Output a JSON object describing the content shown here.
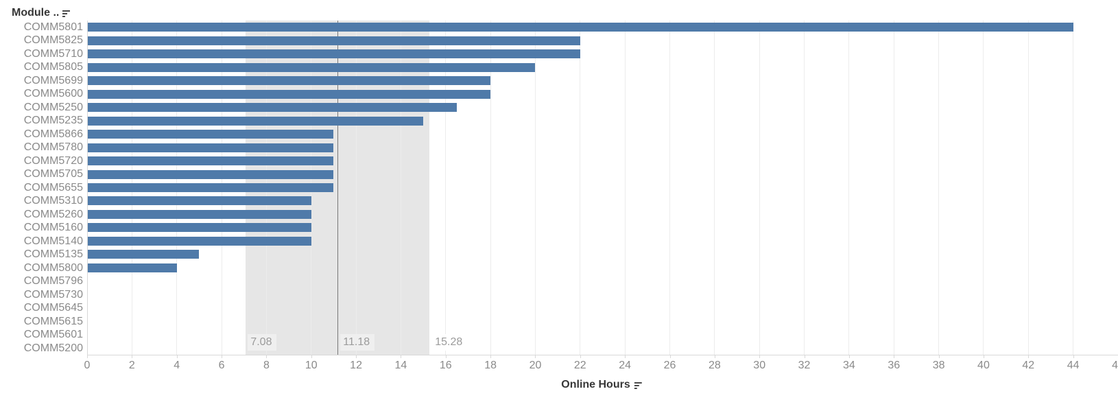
{
  "header": {
    "label": "Module .."
  },
  "axis": {
    "title": "Online Hours"
  },
  "chart_data": {
    "type": "bar",
    "orientation": "horizontal",
    "title": "Module ..",
    "xlabel": "Online Hours",
    "ylabel": "Module",
    "categories": [
      "COMM5801",
      "COMM5825",
      "COMM5710",
      "COMM5805",
      "COMM5699",
      "COMM5600",
      "COMM5250",
      "COMM5235",
      "COMM5866",
      "COMM5780",
      "COMM5720",
      "COMM5705",
      "COMM5655",
      "COMM5310",
      "COMM5260",
      "COMM5160",
      "COMM5140",
      "COMM5135",
      "COMM5800",
      "COMM5796",
      "COMM5730",
      "COMM5645",
      "COMM5615",
      "COMM5601",
      "COMM5200"
    ],
    "values": [
      44,
      22,
      22,
      20,
      18,
      18,
      16.5,
      15,
      11,
      11,
      11,
      11,
      11,
      10,
      10,
      10,
      10,
      5,
      4,
      0,
      0,
      0,
      0,
      0,
      0
    ],
    "xlim": [
      0,
      46
    ],
    "x_tick_step": 2,
    "grid": true,
    "legend": false,
    "reference_band": {
      "start": 7.08,
      "end": 15.28,
      "line": 11.18,
      "start_label": "7.08",
      "line_label": "11.18",
      "end_label": "15.28"
    },
    "colors": {
      "bar": "#4f7aa9",
      "band": "#e6e6e6",
      "band_line": "#787878",
      "gridline": "#ececec",
      "axis_line": "#d8d8d8",
      "tick_text": "#8a8a8a",
      "band_label_bg": "#efefef",
      "sort_icon": "#4a4a4a"
    }
  }
}
